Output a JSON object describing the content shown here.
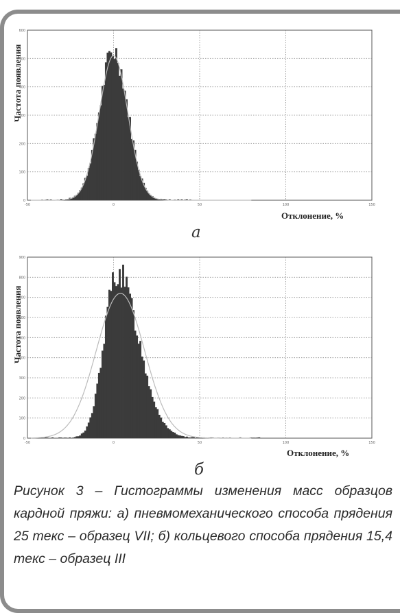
{
  "chart_data": [
    {
      "type": "bar",
      "panel": "a",
      "ylabel": "Частота появления",
      "xlabel": "Отклонение, %",
      "xlim": [
        -50,
        150
      ],
      "ylim": [
        0,
        600
      ],
      "xticks": [
        -50,
        0,
        50,
        100,
        150
      ],
      "yticks": [
        0,
        100,
        200,
        300,
        400,
        500,
        600
      ],
      "grid": true,
      "bin_width": 1,
      "x_range": [
        -42,
        45
      ],
      "mean": 0,
      "sd": 8.3,
      "peak": 530,
      "fit_peak": 510,
      "fit": "normal"
    },
    {
      "type": "bar",
      "panel": "б",
      "ylabel": "Частота появления",
      "xlabel": "Отклонение, %",
      "xlim": [
        -50,
        150
      ],
      "ylim": [
        0,
        900
      ],
      "xticks": [
        -50,
        0,
        50,
        100,
        150
      ],
      "yticks": [
        0,
        100,
        200,
        300,
        400,
        500,
        600,
        700,
        800,
        900
      ],
      "grid": true,
      "bin_width": 1,
      "x_range": [
        -45,
        85
      ],
      "mean": 2,
      "sd": 10,
      "peak": 830,
      "fit_mean": 4,
      "fit_sd": 14,
      "fit_peak": 720,
      "fit": "normal"
    }
  ],
  "labels": {
    "panel_a": "а",
    "panel_b": "б",
    "caption": "Рисунок 3 – Гистограммы изменения масс образцов кардной пряжи: а) пневмомеханического способа прядения  25 текс – образец  VII;  б) кольцевого способа  прядения 15,4 текс – образец III"
  }
}
